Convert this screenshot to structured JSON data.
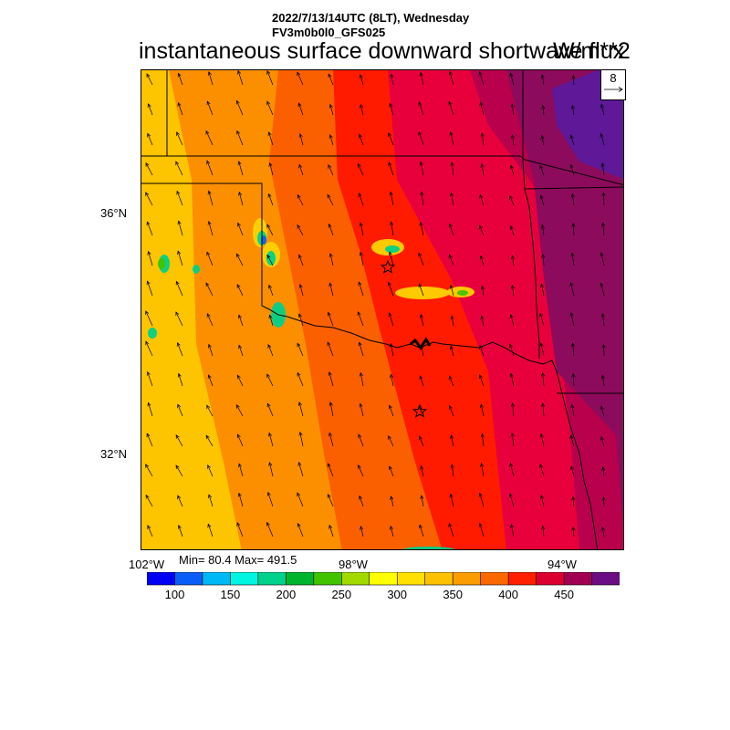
{
  "header": {
    "datetime": "2022/7/13/14UTC (8LT), Wednesday",
    "model": "FV3m0b0l0_GFS025",
    "title": "instantaneous surface downward shortwave flux",
    "units": "W/m**2"
  },
  "map": {
    "lat_labels": [
      "36°N",
      "32°N"
    ],
    "lon_labels": [
      "102°W",
      "98°W",
      "94°W"
    ],
    "field_colors_west_to_east": [
      "#fdc400",
      "#fb8f00",
      "#fb6000",
      "#ff1b00",
      "#e8003c",
      "#b8004c",
      "#8d0b5c",
      "#5e1898"
    ],
    "wind_reference_value": "8",
    "markers": [
      "star-oklahoma-city",
      "star-dallas"
    ]
  },
  "stats": {
    "text": "Min= 80.4 Max= 491.5",
    "min": 80.4,
    "max": 491.5
  },
  "colorbar": {
    "colors": [
      "#0000f5",
      "#0a5ef7",
      "#00b8f4",
      "#00f6e0",
      "#00d18b",
      "#00b52e",
      "#41c300",
      "#a2d900",
      "#ffff00",
      "#ffe000",
      "#fcc100",
      "#fb9d00",
      "#fa6800",
      "#fe2000",
      "#db0030",
      "#a10052",
      "#6b0d82"
    ],
    "labels": [
      "100",
      "150",
      "200",
      "250",
      "300",
      "350",
      "400",
      "450"
    ]
  }
}
